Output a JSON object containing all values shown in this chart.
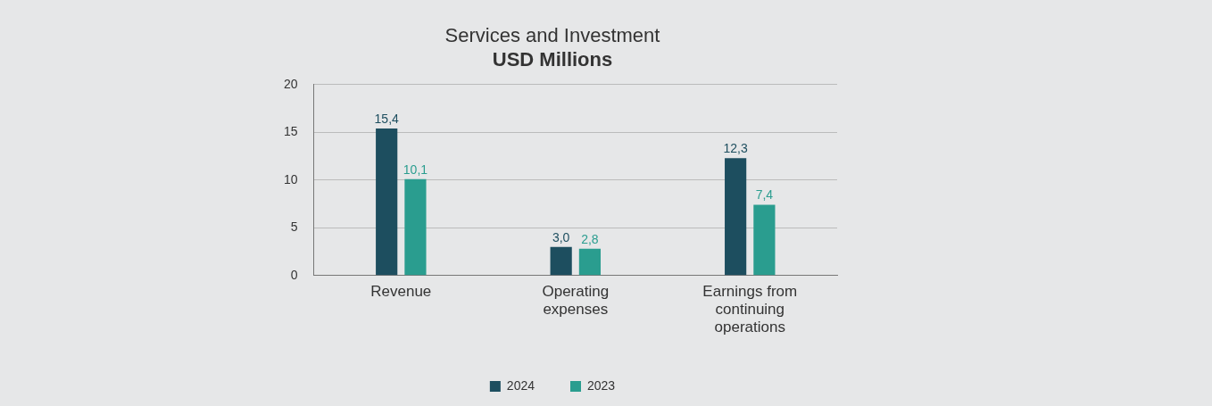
{
  "chart_data": {
    "type": "bar",
    "title": "Services and Investment",
    "subtitle": "USD Millions",
    "categories": [
      "Revenue",
      "Operating expenses",
      "Earnings from continuing operations"
    ],
    "series": [
      {
        "name": "2024",
        "color": "#1d4e5f",
        "values": [
          15.4,
          3.0,
          12.3
        ],
        "value_labels": [
          "15,4",
          "3,0",
          "12,3"
        ]
      },
      {
        "name": "2023",
        "color": "#2a9d8f",
        "values": [
          10.1,
          2.8,
          7.4
        ],
        "value_labels": [
          "10,1",
          "2,8",
          "7,4"
        ]
      }
    ],
    "ylim": [
      0,
      20
    ],
    "yticks": [
      0,
      5,
      10,
      15,
      20
    ],
    "grid": "y",
    "legend": "bottom"
  }
}
